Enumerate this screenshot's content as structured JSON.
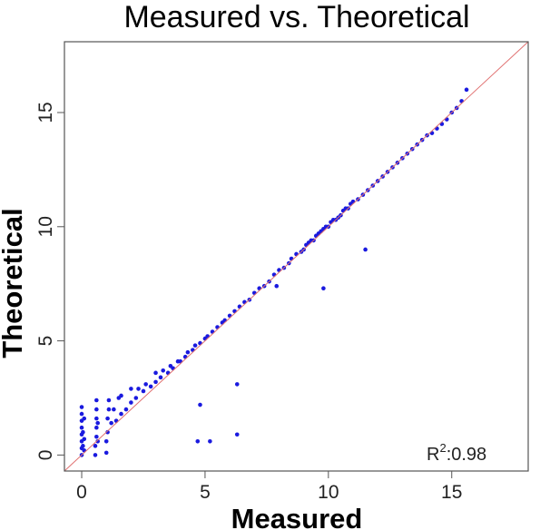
{
  "chart_data": {
    "type": "scatter",
    "title": "Measured vs. Theoretical",
    "xlabel": "Measured",
    "ylabel": "Theoretical",
    "xlim": [
      -0.7,
      18.1
    ],
    "ylim": [
      -0.7,
      18.1
    ],
    "x_ticks": [
      "0",
      "5",
      "10",
      "15"
    ],
    "y_ticks": [
      "0",
      "5",
      "10",
      "15"
    ],
    "grid": false,
    "legend": "none",
    "annotation": {
      "prefix": "R",
      "superscript": "2",
      "value": ":0.98"
    },
    "reference_line": {
      "type": "identity",
      "color": "#e07070"
    },
    "point_color": "#1a1adf",
    "series": [
      {
        "x": [
          0.0,
          0.0,
          0.0,
          0.0,
          0.0,
          0.0,
          0.0,
          0.0,
          0.05,
          0.05,
          0.1,
          0.1,
          0.1,
          0.55,
          0.55,
          0.6,
          0.6,
          0.6,
          0.6,
          0.6,
          0.65,
          0.65,
          1.0,
          1.0,
          1.05,
          1.05,
          1.1,
          1.1,
          1.2,
          1.3,
          1.4,
          1.5,
          1.6,
          1.6,
          1.8,
          2.0,
          2.0,
          2.2,
          2.3,
          2.5,
          2.6,
          2.8,
          3.0,
          3.0,
          3.2,
          3.3,
          3.5,
          3.6,
          3.7,
          3.9,
          4.0,
          4.2,
          4.3,
          4.5,
          4.6,
          4.8,
          5.0,
          5.1,
          5.3,
          5.5,
          5.7,
          5.8,
          6.0,
          6.2,
          6.4,
          6.6,
          6.8,
          7.0,
          7.2,
          7.4,
          7.6,
          7.8,
          8.0,
          8.2,
          8.4,
          8.5,
          8.7,
          8.9,
          9.0,
          9.1,
          9.2,
          9.3,
          9.4,
          9.5,
          9.6,
          9.7,
          9.8,
          9.9,
          10.0,
          10.1,
          10.2,
          10.3,
          10.4,
          10.5,
          10.6,
          10.7,
          10.8,
          10.9,
          11.0,
          11.2,
          11.4,
          11.6,
          11.8,
          12.0,
          12.2,
          12.4,
          12.6,
          12.8,
          13.0,
          13.2,
          13.4,
          13.6,
          13.8,
          14.0,
          14.2,
          14.4,
          14.6,
          14.8,
          15.0,
          15.2,
          15.4,
          15.6,
          4.7,
          5.2,
          6.3,
          6.3,
          4.8,
          9.8,
          7.9,
          11.5
        ],
        "y": [
          0.0,
          0.3,
          0.6,
          0.9,
          1.2,
          1.5,
          1.8,
          2.1,
          0.4,
          1.0,
          0.2,
          0.7,
          1.6,
          0.0,
          0.4,
          0.8,
          1.2,
          1.6,
          2.0,
          2.4,
          0.6,
          1.4,
          0.1,
          0.6,
          1.0,
          1.6,
          2.0,
          2.4,
          1.4,
          2.0,
          1.5,
          2.5,
          1.8,
          2.6,
          2.0,
          2.3,
          2.9,
          2.5,
          2.9,
          2.8,
          3.1,
          3.0,
          3.2,
          3.6,
          3.4,
          3.7,
          3.6,
          3.9,
          3.8,
          4.1,
          4.1,
          4.3,
          4.5,
          4.6,
          4.8,
          4.9,
          5.1,
          5.2,
          5.4,
          5.6,
          5.8,
          5.9,
          6.1,
          6.3,
          6.5,
          6.7,
          6.8,
          7.1,
          7.3,
          7.4,
          7.6,
          7.9,
          8.1,
          8.2,
          8.4,
          8.6,
          8.8,
          8.9,
          9.0,
          9.2,
          9.3,
          9.4,
          9.4,
          9.6,
          9.7,
          9.8,
          9.9,
          10.0,
          10.0,
          10.2,
          10.3,
          10.3,
          10.4,
          10.5,
          10.7,
          10.8,
          10.8,
          11.0,
          11.1,
          11.2,
          11.4,
          11.6,
          11.8,
          12.0,
          12.2,
          12.4,
          12.6,
          12.8,
          13.0,
          13.2,
          13.4,
          13.6,
          13.8,
          14.0,
          14.1,
          14.3,
          14.5,
          14.7,
          15.0,
          15.2,
          15.5,
          16.0,
          0.6,
          0.6,
          0.9,
          3.1,
          2.2,
          7.3,
          7.4,
          9.0
        ]
      }
    ]
  }
}
